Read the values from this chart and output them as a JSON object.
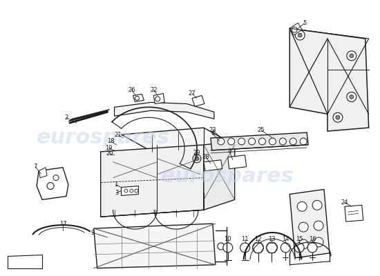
{
  "bg": "#ffffff",
  "lc": "#1a1a1a",
  "wm_color": "#c8d4e8",
  "wm_text": "eurospares",
  "wm1": [
    0.27,
    0.5
  ],
  "wm2": [
    0.6,
    0.36
  ],
  "figsize": [
    5.5,
    4.0
  ],
  "dpi": 100
}
